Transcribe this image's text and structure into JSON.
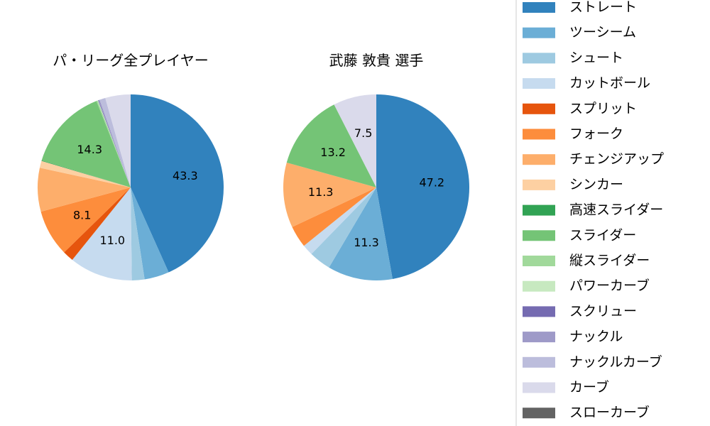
{
  "chart_data": [
    {
      "type": "pie",
      "title": "パ・リーグ全プレイヤー",
      "slices": [
        {
          "name": "ストレート",
          "value": 43.3,
          "label": "43.3"
        },
        {
          "name": "ツーシーム",
          "value": 4.3,
          "label": ""
        },
        {
          "name": "シュート",
          "value": 2.2,
          "label": ""
        },
        {
          "name": "カットボール",
          "value": 11.0,
          "label": "11.0"
        },
        {
          "name": "スプリット",
          "value": 1.9,
          "label": ""
        },
        {
          "name": "フォーク",
          "value": 8.1,
          "label": "8.1"
        },
        {
          "name": "チェンジアップ",
          "value": 7.6,
          "label": ""
        },
        {
          "name": "シンカー",
          "value": 1.2,
          "label": ""
        },
        {
          "name": "高速スライダー",
          "value": 0.1,
          "label": ""
        },
        {
          "name": "スライダー",
          "value": 14.3,
          "label": "14.3"
        },
        {
          "name": "縦スライダー",
          "value": 0.2,
          "label": ""
        },
        {
          "name": "パワーカーブ",
          "value": 0.1,
          "label": ""
        },
        {
          "name": "スクリュー",
          "value": 0.1,
          "label": ""
        },
        {
          "name": "ナックル",
          "value": 0.2,
          "label": ""
        },
        {
          "name": "ナックルカーブ",
          "value": 1.0,
          "label": ""
        },
        {
          "name": "カーブ",
          "value": 4.4,
          "label": ""
        },
        {
          "name": "スローカーブ",
          "value": 0.0,
          "label": ""
        }
      ]
    },
    {
      "type": "pie",
      "title": "武藤 敦貴  選手",
      "slices": [
        {
          "name": "ストレート",
          "value": 47.2,
          "label": "47.2"
        },
        {
          "name": "ツーシーム",
          "value": 11.3,
          "label": "11.3"
        },
        {
          "name": "シュート",
          "value": 3.8,
          "label": ""
        },
        {
          "name": "カットボール",
          "value": 1.9,
          "label": ""
        },
        {
          "name": "スプリット",
          "value": 0.0,
          "label": ""
        },
        {
          "name": "フォーク",
          "value": 3.8,
          "label": ""
        },
        {
          "name": "チェンジアップ",
          "value": 11.3,
          "label": "11.3"
        },
        {
          "name": "シンカー",
          "value": 0.0,
          "label": ""
        },
        {
          "name": "高速スライダー",
          "value": 0.0,
          "label": ""
        },
        {
          "name": "スライダー",
          "value": 13.2,
          "label": "13.2"
        },
        {
          "name": "縦スライダー",
          "value": 0.0,
          "label": ""
        },
        {
          "name": "パワーカーブ",
          "value": 0.0,
          "label": ""
        },
        {
          "name": "スクリュー",
          "value": 0.0,
          "label": ""
        },
        {
          "name": "ナックル",
          "value": 0.0,
          "label": ""
        },
        {
          "name": "ナックルカーブ",
          "value": 0.0,
          "label": ""
        },
        {
          "name": "カーブ",
          "value": 7.5,
          "label": "7.5"
        },
        {
          "name": "スローカーブ",
          "value": 0.0,
          "label": ""
        }
      ]
    }
  ],
  "legend": {
    "placement": "right",
    "entries": [
      {
        "name": "ストレート",
        "color": "#3182bd"
      },
      {
        "name": "ツーシーム",
        "color": "#6baed6"
      },
      {
        "name": "シュート",
        "color": "#9ecae1"
      },
      {
        "name": "カットボール",
        "color": "#c6dbef"
      },
      {
        "name": "スプリット",
        "color": "#e6550d"
      },
      {
        "name": "フォーク",
        "color": "#fd8d3c"
      },
      {
        "name": "チェンジアップ",
        "color": "#fdae6b"
      },
      {
        "name": "シンカー",
        "color": "#fdd0a2"
      },
      {
        "name": "高速スライダー",
        "color": "#31a354"
      },
      {
        "name": "スライダー",
        "color": "#74c476"
      },
      {
        "name": "縦スライダー",
        "color": "#a1d99b"
      },
      {
        "name": "パワーカーブ",
        "color": "#c7e9c0"
      },
      {
        "name": "スクリュー",
        "color": "#756bb1"
      },
      {
        "name": "ナックル",
        "color": "#9e9ac8"
      },
      {
        "name": "ナックルカーブ",
        "color": "#bcbddc"
      },
      {
        "name": "カーブ",
        "color": "#dadaeb"
      },
      {
        "name": "スローカーブ",
        "color": "#636363"
      }
    ]
  }
}
